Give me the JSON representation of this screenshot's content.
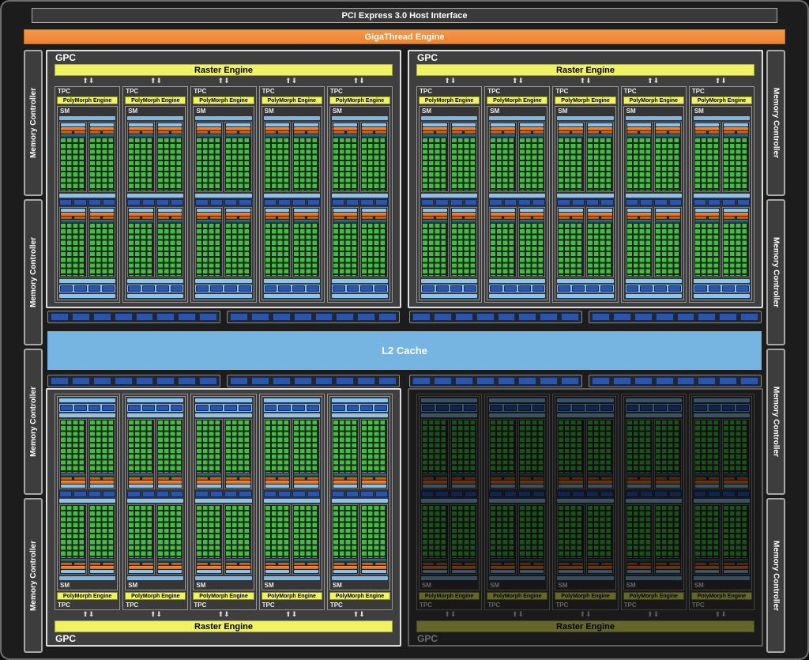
{
  "top_bars": {
    "pci": "PCI Express 3.0 Host Interface",
    "gigathread": "GigaThread Engine"
  },
  "labels": {
    "gpc": "GPC",
    "tpc": "TPC",
    "sm": "SM",
    "raster_engine": "Raster Engine",
    "polymorph_engine": "PolyMorph Engine",
    "l2_cache": "L2 Cache",
    "memory_controller": "Memory Controller"
  },
  "icons": {
    "raster_tpc_link": "⬆⬇"
  },
  "structure": {
    "gpcs": [
      {
        "id": "gpc-top-left",
        "corner": "top-left",
        "flipped": false,
        "dimmed": false
      },
      {
        "id": "gpc-top-right",
        "corner": "top-right",
        "flipped": false,
        "dimmed": false
      },
      {
        "id": "gpc-bottom-left",
        "corner": "bottom-left",
        "flipped": true,
        "dimmed": false
      },
      {
        "id": "gpc-bottom-right",
        "corner": "bottom-right",
        "flipped": true,
        "dimmed": true
      }
    ],
    "tpcs_per_gpc": 5,
    "sms_per_tpc": 1,
    "sm_processing_halves": 2,
    "subpartitions_per_half": 2,
    "core_grid": {
      "columns": 4,
      "rows": 10
    },
    "dispatch_segments_per_subpartition": 2,
    "load_store_boxes_per_row": 4,
    "memory_controllers_per_side": 4,
    "crossbar": {
      "rows": 2,
      "groups_per_row": 4,
      "links_per_group": 8
    }
  },
  "colors": {
    "background": "#1c1c1c",
    "panel_gray": "#3d3d3d",
    "accent_orange": "#ec8430",
    "engine_yellow": "#eef263",
    "l2_light_blue": "#76b5e2",
    "bar_light_blue": "#8ac4ee",
    "register_teal": "#1d5d6d",
    "core_green": "#3cc13c",
    "link_dark_blue": "#2a55ac",
    "disabled_gpc_brightness": 0.42
  }
}
